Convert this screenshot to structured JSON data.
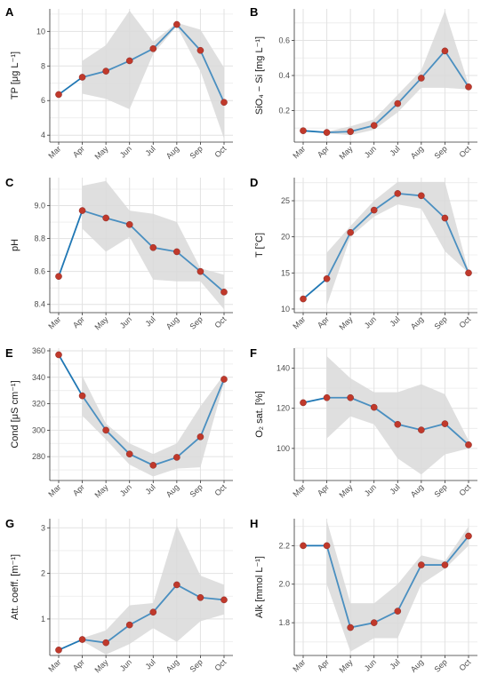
{
  "chart_data": [
    {
      "panel": "A",
      "type": "line",
      "ylabel": "TP [μg L⁻¹]",
      "categories": [
        "Mar",
        "Apr",
        "May",
        "Jun",
        "Jul",
        "Aug",
        "Sep",
        "Oct"
      ],
      "values": [
        6.35,
        7.35,
        7.7,
        8.3,
        9.0,
        10.4,
        8.9,
        5.9
      ],
      "band_lower": [
        null,
        6.4,
        6.1,
        5.5,
        8.7,
        10.3,
        7.7,
        3.8
      ],
      "band_upper": [
        null,
        8.3,
        9.2,
        11.2,
        9.4,
        10.5,
        10.1,
        7.9
      ],
      "ylim": [
        3.6,
        11.3
      ],
      "yticks": [
        4,
        6,
        8,
        10
      ]
    },
    {
      "panel": "B",
      "type": "line",
      "ylabel": "SiO₄ − Si [mg L⁻¹]",
      "categories": [
        "Mar",
        "Apr",
        "May",
        "Jun",
        "Jul",
        "Aug",
        "Sep",
        "Oct"
      ],
      "values": [
        0.085,
        0.075,
        0.08,
        0.115,
        0.24,
        0.385,
        0.54,
        0.335
      ],
      "band_lower": [
        null,
        0.07,
        0.06,
        0.09,
        0.19,
        0.33,
        0.33,
        0.32
      ],
      "band_upper": [
        null,
        0.08,
        0.11,
        0.15,
        0.29,
        0.43,
        0.77,
        0.35
      ],
      "ylim": [
        0.02,
        0.78
      ],
      "yticks": [
        0.2,
        0.4,
        0.6
      ]
    },
    {
      "panel": "C",
      "type": "line",
      "ylabel": "pH",
      "categories": [
        "Mar",
        "Apr",
        "May",
        "Jun",
        "Jul",
        "Aug",
        "Sep",
        "Oct"
      ],
      "values": [
        8.57,
        8.97,
        8.925,
        8.885,
        8.745,
        8.72,
        8.6,
        8.475
      ],
      "band_lower": [
        null,
        8.86,
        8.72,
        8.81,
        8.55,
        8.54,
        8.54,
        8.37
      ],
      "band_upper": [
        null,
        9.12,
        9.15,
        8.97,
        8.95,
        8.9,
        8.62,
        8.58
      ],
      "ylim": [
        8.35,
        9.17
      ],
      "yticks": [
        8.4,
        8.6,
        8.8,
        9.0
      ]
    },
    {
      "panel": "D",
      "type": "line",
      "ylabel": "T [°C]",
      "categories": [
        "Mar",
        "Apr",
        "May",
        "Jun",
        "Jul",
        "Aug",
        "Sep",
        "Oct"
      ],
      "values": [
        11.4,
        14.2,
        20.6,
        23.7,
        26.0,
        25.7,
        22.6,
        15.0
      ],
      "band_lower": [
        null,
        10.5,
        20.0,
        22.8,
        24.5,
        23.9,
        18.0,
        15.0
      ],
      "band_upper": [
        null,
        17.8,
        21.5,
        25.0,
        27.6,
        27.6,
        27.6,
        15.2
      ],
      "ylim": [
        9.5,
        28.2
      ],
      "yticks": [
        10,
        15,
        20,
        25
      ]
    },
    {
      "panel": "E",
      "type": "line",
      "ylabel": "Cond [μS cm⁻¹]",
      "categories": [
        "Mar",
        "Apr",
        "May",
        "Jun",
        "Jul",
        "Aug",
        "Sep",
        "Oct"
      ],
      "values": [
        357,
        326,
        300,
        282,
        273.5,
        279.5,
        295,
        338.5
      ],
      "band_lower": [
        null,
        311,
        293,
        274,
        265,
        271,
        272,
        336
      ],
      "band_upper": [
        null,
        341,
        305,
        290,
        282,
        290,
        318,
        342
      ],
      "ylim": [
        262,
        362
      ],
      "yticks": [
        280,
        300,
        320,
        340,
        360
      ]
    },
    {
      "panel": "F",
      "type": "line",
      "ylabel": "O₂ sat. [%]",
      "categories": [
        "Mar",
        "Apr",
        "May",
        "Jun",
        "Jul",
        "Aug",
        "Sep",
        "Oct"
      ],
      "values": [
        122.8,
        125.3,
        125.3,
        120.5,
        112.0,
        109.2,
        112.3,
        101.8
      ],
      "band_lower": [
        null,
        105,
        116,
        112,
        95,
        87,
        97,
        100
      ],
      "band_upper": [
        null,
        146,
        135,
        128,
        128,
        132,
        127,
        104
      ],
      "ylim": [
        84,
        150
      ],
      "yticks": [
        100,
        120,
        140
      ]
    },
    {
      "panel": "G",
      "type": "line",
      "ylabel": "Att. coeff. [m⁻¹]",
      "categories": [
        "Mar",
        "Apr",
        "May",
        "Jun",
        "Jul",
        "Aug",
        "Sep",
        "Oct"
      ],
      "values": [
        0.32,
        0.55,
        0.48,
        0.87,
        1.15,
        1.75,
        1.47,
        1.42
      ],
      "band_lower": [
        null,
        0.52,
        0.22,
        0.45,
        0.8,
        0.5,
        0.95,
        1.1
      ],
      "band_upper": [
        null,
        0.58,
        0.75,
        1.3,
        1.35,
        3.05,
        1.95,
        1.75
      ],
      "ylim": [
        0.2,
        3.2
      ],
      "yticks": [
        1,
        2,
        3
      ]
    },
    {
      "panel": "H",
      "type": "line",
      "ylabel": "Alk [mmol L⁻¹]",
      "categories": [
        "Mar",
        "Apr",
        "May",
        "Jun",
        "Jul",
        "Aug",
        "Sep",
        "Oct"
      ],
      "values": [
        2.2,
        2.2,
        1.775,
        1.8,
        1.86,
        2.1,
        2.1,
        2.25
      ],
      "band_lower": [
        null,
        2.0,
        1.65,
        1.72,
        1.72,
        2.0,
        2.08,
        2.2
      ],
      "band_upper": [
        null,
        2.33,
        1.9,
        1.9,
        2.0,
        2.15,
        2.12,
        2.3
      ],
      "ylim": [
        1.63,
        2.34
      ],
      "yticks": [
        1.8,
        2.0,
        2.2
      ]
    }
  ]
}
